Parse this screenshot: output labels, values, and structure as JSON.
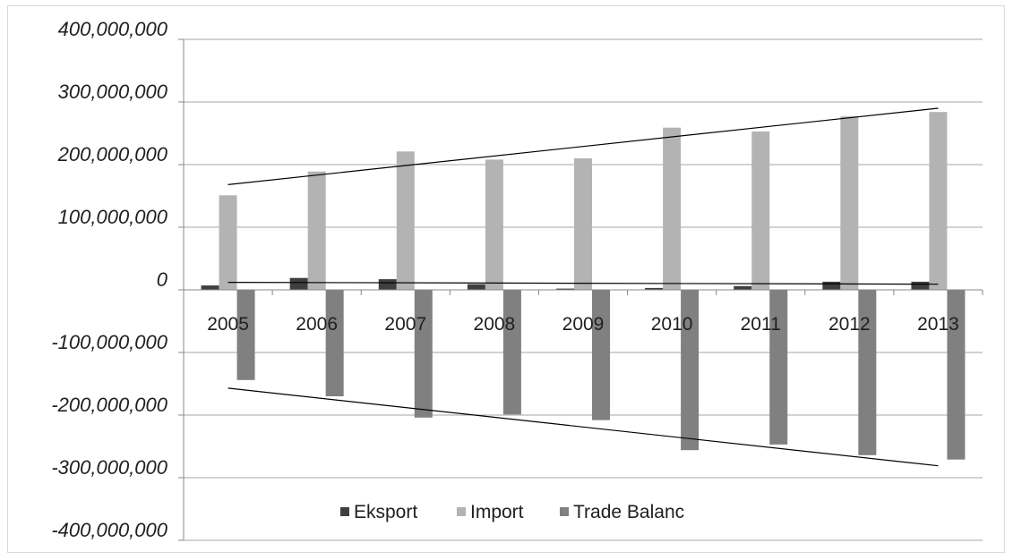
{
  "chart_data": {
    "type": "bar",
    "title": "",
    "xlabel": "",
    "ylabel": "",
    "categories": [
      "2005",
      "2006",
      "2007",
      "2008",
      "2009",
      "2010",
      "2011",
      "2012",
      "2013"
    ],
    "series": [
      {
        "name": "Eksport",
        "color": "#3f3f3f",
        "values": [
          7000000,
          19000000,
          17000000,
          9000000,
          2000000,
          3000000,
          6000000,
          13000000,
          13000000
        ]
      },
      {
        "name": "Import",
        "color": "#b3b3b3",
        "values": [
          151000000,
          189000000,
          221000000,
          208000000,
          210000000,
          259000000,
          253000000,
          277000000,
          284000000
        ]
      },
      {
        "name": "Trade Balanc",
        "color": "#808080",
        "values": [
          -144000000,
          -170000000,
          -204000000,
          -199000000,
          -208000000,
          -256000000,
          -247000000,
          -264000000,
          -271000000
        ]
      }
    ],
    "ylim": [
      -400000000,
      400000000
    ],
    "yticks": [
      400000000,
      300000000,
      200000000,
      100000000,
      0,
      -100000000,
      -200000000,
      -300000000,
      -400000000
    ],
    "ytick_labels": [
      "400,000,000",
      "300,000,000",
      "200,000,000",
      "100,000,000",
      "0",
      "-100,000,000",
      "-200,000,000",
      "-300,000,000",
      "-400,000,000"
    ],
    "trendlines": [
      {
        "series": "Import",
        "start": 168000000,
        "end": 290000000
      },
      {
        "series": "Eksport",
        "start": 12000000,
        "end": 9000000
      },
      {
        "series": "Trade Balanc",
        "start": -157000000,
        "end": -281000000
      }
    ],
    "grid": true,
    "legend": {
      "position": "bottom-center",
      "entries": [
        "Eksport",
        "Import",
        "Trade Balanc"
      ]
    }
  }
}
